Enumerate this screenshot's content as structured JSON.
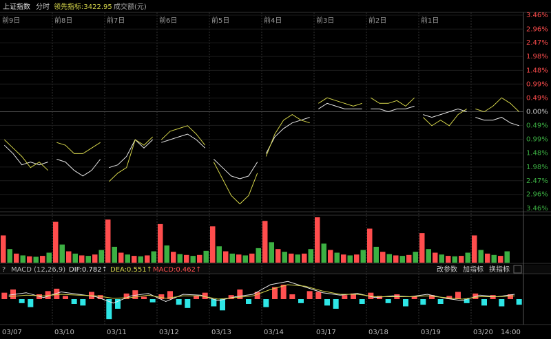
{
  "header": {
    "title": "上证指数",
    "mode": "分时",
    "leading": "领先指标:3422.95",
    "volume_unit": "成交额(元)"
  },
  "day_labels": [
    "前9日",
    "前8日",
    "前7日",
    "前6日",
    "前5日",
    "前4日",
    "前3日",
    "前2日",
    "前1日"
  ],
  "price": {
    "ylim": [
      -3.46,
      3.46
    ],
    "yticks": [
      {
        "value": 3.46,
        "label": "3.46%"
      },
      {
        "value": 2.96,
        "label": "2.96%"
      },
      {
        "value": 2.47,
        "label": "2.47%"
      },
      {
        "value": 1.98,
        "label": "1.98%"
      },
      {
        "value": 1.48,
        "label": "1.48%"
      },
      {
        "value": 0.99,
        "label": "0.99%"
      },
      {
        "value": 0.49,
        "label": "0.49%"
      },
      {
        "value": 0,
        "label": "0.00%"
      },
      {
        "value": -0.49,
        "label": "0.49%"
      },
      {
        "value": -0.99,
        "label": "0.99%"
      },
      {
        "value": -1.48,
        "label": "1.48%"
      },
      {
        "value": -1.98,
        "label": "1.98%"
      },
      {
        "value": -2.47,
        "label": "2.47%"
      },
      {
        "value": -2.96,
        "label": "2.96%"
      },
      {
        "value": -3.46,
        "label": "3.46%"
      }
    ],
    "up_color": "#ff4d4d",
    "down_color": "#3cb043",
    "series": [
      {
        "color": "#e8e8e8",
        "values": [
          -1.2,
          -1.5,
          -1.9,
          -1.8,
          -1.9,
          -1.8,
          null,
          -1.7,
          -1.8,
          -2.1,
          -2.3,
          -2.1,
          -1.7,
          null,
          -2.0,
          -1.9,
          -1.6,
          -1.0,
          -1.3,
          -1.0,
          null,
          -1.1,
          -1.0,
          -0.9,
          -0.8,
          -1.0,
          -1.3,
          null,
          -1.7,
          -2.0,
          -2.3,
          -2.4,
          -2.3,
          -1.8,
          null,
          -1.5,
          -0.9,
          -0.6,
          -0.4,
          -0.3,
          -0.2,
          null,
          0.1,
          0.3,
          0.2,
          0.1,
          0.1,
          0.1,
          null,
          0.1,
          0.1,
          0.0,
          0.1,
          0.1,
          0.2,
          null,
          -0.1,
          -0.2,
          -0.1,
          0.0,
          0.1,
          0.0,
          null,
          -0.2,
          -0.3,
          -0.3,
          -0.2,
          -0.4,
          -0.5
        ]
      },
      {
        "color": "#d4d44a",
        "values": [
          -1.0,
          -1.3,
          -1.6,
          -2.0,
          -1.8,
          -2.1,
          null,
          -1.1,
          -1.2,
          -1.5,
          -1.5,
          -1.3,
          -1.1,
          null,
          -2.5,
          -2.2,
          -2.0,
          -1.0,
          -1.2,
          -0.9,
          null,
          -1.0,
          -0.7,
          -0.6,
          -0.5,
          -0.8,
          -1.2,
          null,
          -1.8,
          -2.4,
          -3.0,
          -3.3,
          -3.0,
          -2.2,
          null,
          -1.6,
          -0.8,
          -0.3,
          -0.1,
          -0.3,
          -0.4,
          null,
          0.3,
          0.5,
          0.4,
          0.3,
          0.2,
          0.3,
          null,
          0.5,
          0.3,
          0.3,
          0.4,
          0.2,
          0.5,
          null,
          -0.2,
          -0.5,
          -0.3,
          -0.5,
          -0.1,
          0.1,
          null,
          0.1,
          0.0,
          0.2,
          0.5,
          0.3,
          0.0
        ]
      }
    ]
  },
  "volume": {
    "ylim": [
      0,
      100
    ],
    "colors": [
      "#ff4d4d",
      "#3cb043"
    ],
    "values": [
      60,
      30,
      20,
      16,
      14,
      13,
      15,
      22,
      90,
      40,
      25,
      20,
      16,
      15,
      18,
      28,
      95,
      35,
      22,
      18,
      15,
      14,
      16,
      25,
      85,
      38,
      24,
      19,
      17,
      15,
      17,
      26,
      80,
      36,
      25,
      20,
      18,
      16,
      20,
      32,
      92,
      45,
      30,
      24,
      20,
      18,
      20,
      30,
      100,
      42,
      28,
      22,
      18,
      16,
      18,
      28,
      75,
      35,
      24,
      19,
      16,
      15,
      17,
      24,
      65,
      30,
      22,
      18,
      15,
      14,
      15,
      22,
      60,
      28,
      20,
      17,
      15,
      25
    ]
  },
  "macd": {
    "name": "MACD (12,26,9)",
    "dif": "DIF:0.782↑",
    "dea": "DEA:0.551↑",
    "macd": "MACD:0.462↑",
    "buttons": [
      "改参数",
      "加指标",
      "换指标"
    ],
    "ylim": [
      -3,
      3
    ],
    "pos_color": "#ff5050",
    "neg_color": "#2ee6e6",
    "dif_color": "#e8e8e8",
    "dea_color": "#d4d44a",
    "bars": [
      0.8,
      1.2,
      -0.5,
      -1.0,
      0.6,
      1.0,
      1.3,
      0.4,
      -0.6,
      -0.8,
      0.9,
      0.5,
      -2.5,
      -1.2,
      0.7,
      1.1,
      0.3,
      -0.4,
      0.6,
      1.0,
      -0.7,
      -1.1,
      0.4,
      0.8,
      -0.9,
      -1.4,
      0.5,
      1.2,
      -0.6,
      0.9,
      -1.0,
      1.5,
      1.8,
      0.6,
      -0.5,
      1.0,
      0.9,
      -0.8,
      -1.2,
      0.5,
      0.7,
      -0.6,
      0.8,
      0.4,
      -0.5,
      0.6,
      -0.9,
      0.3,
      -0.7,
      0.5,
      -0.6,
      0.4,
      0.9,
      -0.5,
      0.7,
      -0.8,
      0.5,
      -0.9,
      0.6,
      -0.7
    ],
    "dif_values": [
      0.5,
      0.8,
      0.2,
      0.9,
      0.6,
      0.3,
      -0.5,
      0.4,
      0.7,
      -0.3,
      0.6,
      0.5,
      -0.2,
      0.3,
      0.6,
      1.8,
      2.2,
      1.5,
      0.8,
      0.5,
      0.7,
      0.2,
      0.4,
      0.3,
      0.6,
      0.1,
      -0.2,
      0.5,
      0.3,
      0.6
    ],
    "dea_values": [
      0.3,
      0.5,
      0.4,
      0.6,
      0.5,
      0.4,
      0.1,
      0.2,
      0.5,
      0.1,
      0.4,
      0.4,
      0.0,
      0.2,
      0.4,
      1.2,
      1.8,
      1.6,
      1.0,
      0.6,
      0.6,
      0.3,
      0.3,
      0.3,
      0.4,
      0.2,
      0.0,
      0.3,
      0.3,
      0.4
    ]
  },
  "x_labels": [
    "03/07",
    "03/10",
    "03/11",
    "03/12",
    "03/13",
    "03/14",
    "03/17",
    "03/18",
    "03/19",
    "03/20",
    "14:00"
  ]
}
